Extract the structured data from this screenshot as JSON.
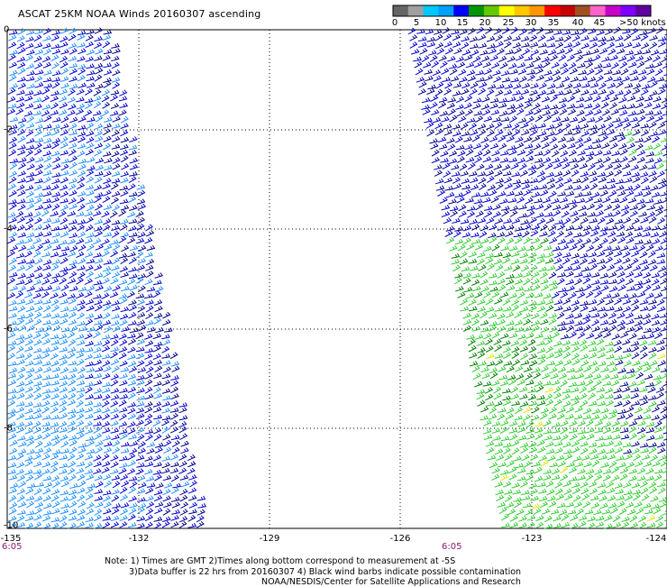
{
  "title": "ASCAT 25KM NOAA Winds 20160307 ascending",
  "legend": {
    "ticks": [
      "0",
      "5",
      "10",
      "15",
      "20",
      "25",
      "30",
      "35",
      "40",
      "45"
    ],
    "unit_label": ">50 knots",
    "colors": [
      "#666666",
      "#a0a0a0",
      "#00c8ff",
      "#00a0ff",
      "#0000ff",
      "#009600",
      "#64c800",
      "#ffff00",
      "#ffc800",
      "#ff9600",
      "#ff0000",
      "#c80000",
      "#a05020",
      "#ff64c8",
      "#c800c8",
      "#8000ff",
      "#6000a0"
    ]
  },
  "axes": {
    "x_ticks": [
      "-135",
      "-132",
      "-129",
      "-126",
      "-123",
      "-124"
    ],
    "y_ticks": [
      "0",
      "-2",
      "-4",
      "-6",
      "-8",
      "-10"
    ]
  },
  "times": {
    "left": "6:05",
    "right": "6:05"
  },
  "notes": {
    "line1": "Note: 1) Times are GMT 2)Times along bottom correspond to measurement at -5S",
    "line2": "3)Data buffer is 22 hrs from 20160307 4) Black wind barbs indicate possible contamination",
    "line3": "NOAA/NESDIS/Center for Satellite Applications and Research"
  },
  "colors": {
    "barb_light_blue": "#1e90ff",
    "barb_blue": "#0000cd",
    "barb_dark_blue": "#00008b",
    "barb_light_green": "#32cd32",
    "barb_green": "#008000",
    "barb_yellow": "#e6e600",
    "grid": "#000000",
    "time_label": "#8a1a6a"
  }
}
